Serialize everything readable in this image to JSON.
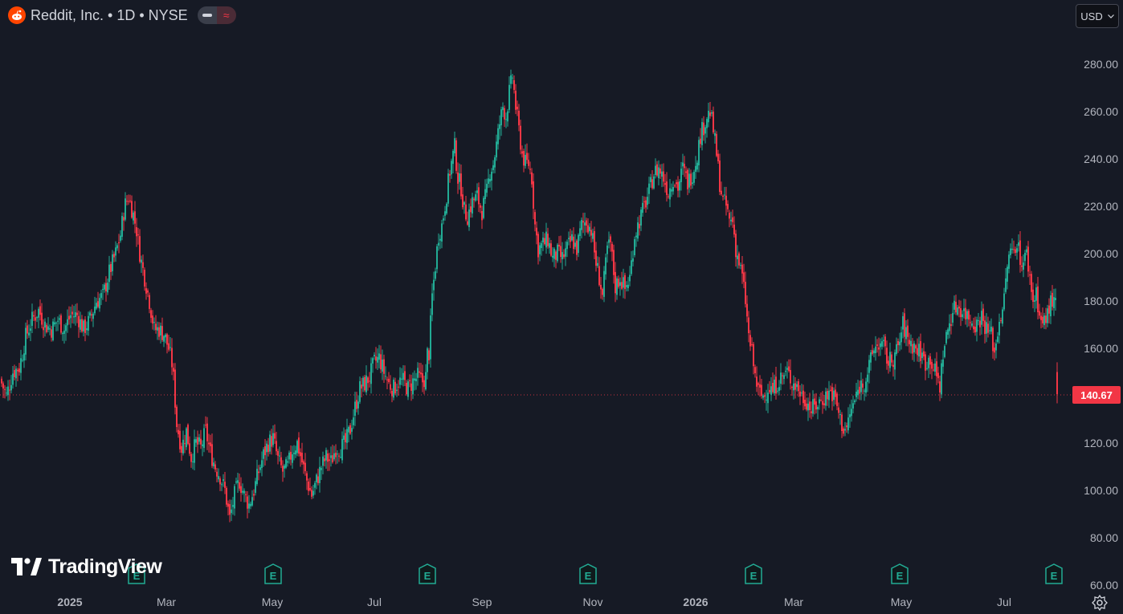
{
  "header": {
    "symbol_title": "Reddit, Inc. • 1D • NYSE",
    "logo_icon": "reddit-logo-icon",
    "pill_left_icon": "minus-icon",
    "pill_right_symbol": "≈"
  },
  "currency": {
    "label": "USD",
    "icon": "chevron-down-icon"
  },
  "watermark": {
    "brand": "TradingView",
    "icon": "tradingview-logo-icon"
  },
  "colors": {
    "up": "#22ab94",
    "down": "#f23645",
    "background": "#161a25",
    "earnings": "#22ab94"
  },
  "earnings_marker_label": "E",
  "last_price_label": "140.67",
  "chart_data": {
    "type": "candlestick",
    "x_axis_labels": [
      "2025",
      "Mar",
      "May",
      "Jul",
      "Sep",
      "Nov",
      "2026",
      "Mar",
      "May",
      "Jul"
    ],
    "y_axis_labels": [
      "280.00",
      "260.00",
      "240.00",
      "220.00",
      "200.00",
      "180.00",
      "160.00",
      "120.00",
      "100.00",
      "80.00",
      "60.00"
    ],
    "ylim": [
      60,
      285
    ],
    "last_price": 140.67,
    "grid": false,
    "closes": [
      [
        0,
        147
      ],
      [
        8,
        140
      ],
      [
        16,
        150
      ],
      [
        24,
        152
      ],
      [
        28,
        158
      ],
      [
        32,
        165
      ],
      [
        40,
        172
      ],
      [
        48,
        176
      ],
      [
        56,
        170
      ],
      [
        64,
        168
      ],
      [
        72,
        172
      ],
      [
        80,
        168
      ],
      [
        88,
        174
      ],
      [
        96,
        174
      ],
      [
        104,
        168
      ],
      [
        112,
        172
      ],
      [
        120,
        180
      ],
      [
        128,
        182
      ],
      [
        136,
        192
      ],
      [
        144,
        200
      ],
      [
        150,
        208
      ],
      [
        155,
        220
      ],
      [
        160,
        224
      ],
      [
        165,
        218
      ],
      [
        170,
        210
      ],
      [
        175,
        198
      ],
      [
        180,
        190
      ],
      [
        186,
        180
      ],
      [
        192,
        168
      ],
      [
        198,
        168
      ],
      [
        204,
        166
      ],
      [
        210,
        160
      ],
      [
        215,
        152
      ],
      [
        220,
        128
      ],
      [
        226,
        118
      ],
      [
        232,
        125
      ],
      [
        238,
        114
      ],
      [
        244,
        120
      ],
      [
        250,
        118
      ],
      [
        256,
        125
      ],
      [
        262,
        116
      ],
      [
        268,
        110
      ],
      [
        274,
        106
      ],
      [
        280,
        100
      ],
      [
        286,
        88
      ],
      [
        292,
        98
      ],
      [
        298,
        104
      ],
      [
        304,
        98
      ],
      [
        310,
        94
      ],
      [
        316,
        100
      ],
      [
        322,
        108
      ],
      [
        328,
        115
      ],
      [
        334,
        120
      ],
      [
        340,
        122
      ],
      [
        346,
        113
      ],
      [
        352,
        108
      ],
      [
        358,
        110
      ],
      [
        364,
        117
      ],
      [
        370,
        120
      ],
      [
        376,
        112
      ],
      [
        382,
        104
      ],
      [
        388,
        98
      ],
      [
        394,
        104
      ],
      [
        400,
        110
      ],
      [
        406,
        114
      ],
      [
        412,
        112
      ],
      [
        418,
        118
      ],
      [
        424,
        118
      ],
      [
        430,
        120
      ],
      [
        436,
        126
      ],
      [
        442,
        135
      ],
      [
        448,
        143
      ],
      [
        454,
        145
      ],
      [
        460,
        148
      ],
      [
        466,
        154
      ],
      [
        472,
        156
      ],
      [
        478,
        150
      ],
      [
        484,
        145
      ],
      [
        490,
        143
      ],
      [
        496,
        146
      ],
      [
        502,
        146
      ],
      [
        508,
        143
      ],
      [
        514,
        146
      ],
      [
        520,
        148
      ],
      [
        526,
        146
      ],
      [
        530,
        148
      ],
      [
        534,
        158
      ],
      [
        538,
        182
      ],
      [
        542,
        195
      ],
      [
        546,
        208
      ],
      [
        550,
        212
      ],
      [
        556,
        225
      ],
      [
        560,
        235
      ],
      [
        566,
        245
      ],
      [
        570,
        232
      ],
      [
        574,
        228
      ],
      [
        578,
        218
      ],
      [
        582,
        216
      ],
      [
        588,
        222
      ],
      [
        594,
        224
      ],
      [
        600,
        218
      ],
      [
        606,
        226
      ],
      [
        610,
        235
      ],
      [
        614,
        238
      ],
      [
        618,
        246
      ],
      [
        622,
        255
      ],
      [
        626,
        262
      ],
      [
        630,
        258
      ],
      [
        634,
        268
      ],
      [
        638,
        275
      ],
      [
        642,
        262
      ],
      [
        646,
        252
      ],
      [
        650,
        242
      ],
      [
        654,
        238
      ],
      [
        658,
        238
      ],
      [
        662,
        232
      ],
      [
        666,
        212
      ],
      [
        670,
        202
      ],
      [
        676,
        204
      ],
      [
        682,
        206
      ],
      [
        688,
        198
      ],
      [
        694,
        200
      ],
      [
        700,
        198
      ],
      [
        706,
        202
      ],
      [
        712,
        206
      ],
      [
        718,
        202
      ],
      [
        724,
        212
      ],
      [
        730,
        214
      ],
      [
        736,
        210
      ],
      [
        742,
        196
      ],
      [
        746,
        190
      ],
      [
        750,
        182
      ],
      [
        756,
        202
      ],
      [
        760,
        204
      ],
      [
        766,
        186
      ],
      [
        772,
        190
      ],
      [
        778,
        185
      ],
      [
        784,
        190
      ],
      [
        790,
        208
      ],
      [
        796,
        214
      ],
      [
        802,
        220
      ],
      [
        808,
        226
      ],
      [
        814,
        234
      ],
      [
        820,
        236
      ],
      [
        826,
        232
      ],
      [
        832,
        226
      ],
      [
        838,
        232
      ],
      [
        844,
        228
      ],
      [
        850,
        236
      ],
      [
        856,
        230
      ],
      [
        862,
        234
      ],
      [
        868,
        242
      ],
      [
        872,
        250
      ],
      [
        876,
        254
      ],
      [
        880,
        258
      ],
      [
        884,
        260
      ],
      [
        888,
        252
      ],
      [
        892,
        242
      ],
      [
        896,
        230
      ],
      [
        900,
        222
      ],
      [
        904,
        220
      ],
      [
        908,
        214
      ],
      [
        912,
        214
      ],
      [
        916,
        202
      ],
      [
        920,
        196
      ],
      [
        924,
        190
      ],
      [
        928,
        180
      ],
      [
        932,
        165
      ],
      [
        936,
        158
      ],
      [
        940,
        148
      ],
      [
        944,
        142
      ],
      [
        948,
        140
      ],
      [
        952,
        140
      ],
      [
        956,
        144
      ],
      [
        962,
        142
      ],
      [
        968,
        146
      ],
      [
        974,
        148
      ],
      [
        980,
        150
      ],
      [
        986,
        146
      ],
      [
        992,
        144
      ],
      [
        998,
        140
      ],
      [
        1004,
        138
      ],
      [
        1010,
        134
      ],
      [
        1016,
        136
      ],
      [
        1022,
        138
      ],
      [
        1028,
        140
      ],
      [
        1034,
        142
      ],
      [
        1040,
        138
      ],
      [
        1046,
        130
      ],
      [
        1050,
        126
      ],
      [
        1054,
        126
      ],
      [
        1058,
        132
      ],
      [
        1064,
        138
      ],
      [
        1070,
        144
      ],
      [
        1076,
        146
      ],
      [
        1082,
        152
      ],
      [
        1088,
        160
      ],
      [
        1094,
        162
      ],
      [
        1100,
        160
      ],
      [
        1106,
        154
      ],
      [
        1112,
        156
      ],
      [
        1118,
        160
      ],
      [
        1124,
        170
      ],
      [
        1128,
        166
      ],
      [
        1134,
        162
      ],
      [
        1140,
        160
      ],
      [
        1146,
        158
      ],
      [
        1152,
        154
      ],
      [
        1158,
        156
      ],
      [
        1164,
        150
      ],
      [
        1170,
        144
      ],
      [
        1174,
        158
      ],
      [
        1180,
        168
      ],
      [
        1186,
        176
      ],
      [
        1192,
        178
      ],
      [
        1198,
        176
      ],
      [
        1204,
        174
      ],
      [
        1210,
        172
      ],
      [
        1216,
        170
      ],
      [
        1222,
        174
      ],
      [
        1228,
        168
      ],
      [
        1234,
        166
      ],
      [
        1238,
        158
      ],
      [
        1244,
        172
      ],
      [
        1250,
        180
      ],
      [
        1254,
        196
      ],
      [
        1258,
        200
      ],
      [
        1262,
        202
      ],
      [
        1266,
        206
      ],
      [
        1270,
        198
      ],
      [
        1274,
        196
      ],
      [
        1278,
        200
      ],
      [
        1282,
        190
      ],
      [
        1286,
        180
      ],
      [
        1290,
        184
      ],
      [
        1294,
        174
      ],
      [
        1298,
        170
      ],
      [
        1302,
        172
      ],
      [
        1306,
        178
      ],
      [
        1310,
        180
      ],
      [
        1314,
        178
      ],
      [
        1318,
        142
      ]
    ],
    "gaps": [
      531,
      1315
    ],
    "earnings_x": [
      170,
      340,
      532,
      732,
      938,
      1120,
      1312
    ]
  }
}
